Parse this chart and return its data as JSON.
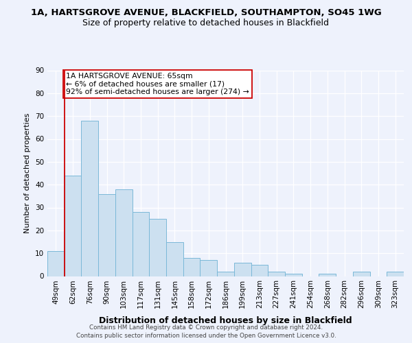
{
  "title": "1A, HARTSGROVE AVENUE, BLACKFIELD, SOUTHAMPTON, SO45 1WG",
  "subtitle": "Size of property relative to detached houses in Blackfield",
  "xlabel": "Distribution of detached houses by size in Blackfield",
  "ylabel": "Number of detached properties",
  "categories": [
    "49sqm",
    "62sqm",
    "76sqm",
    "90sqm",
    "103sqm",
    "117sqm",
    "131sqm",
    "145sqm",
    "158sqm",
    "172sqm",
    "186sqm",
    "199sqm",
    "213sqm",
    "227sqm",
    "241sqm",
    "254sqm",
    "268sqm",
    "282sqm",
    "296sqm",
    "309sqm",
    "323sqm"
  ],
  "values": [
    11,
    44,
    68,
    36,
    38,
    28,
    25,
    15,
    8,
    7,
    2,
    6,
    5,
    2,
    1,
    0,
    1,
    0,
    2,
    0,
    2
  ],
  "bar_color": "#cce0f0",
  "bar_edge_color": "#7ab8d8",
  "marker_line_color": "#cc0000",
  "annotation_line1": "1A HARTSGROVE AVENUE: 65sqm",
  "annotation_line2": "← 6% of detached houses are smaller (17)",
  "annotation_line3": "92% of semi-detached houses are larger (274) →",
  "annotation_box_color": "#ffffff",
  "annotation_box_edge": "#cc0000",
  "ylim": [
    0,
    90
  ],
  "yticks": [
    0,
    10,
    20,
    30,
    40,
    50,
    60,
    70,
    80,
    90
  ],
  "footer_line1": "Contains HM Land Registry data © Crown copyright and database right 2024.",
  "footer_line2": "Contains public sector information licensed under the Open Government Licence v3.0.",
  "bg_color": "#eef2fc",
  "grid_color": "#ffffff",
  "title_fontsize": 9.5,
  "subtitle_fontsize": 9,
  "ylabel_fontsize": 8,
  "xlabel_fontsize": 9,
  "tick_fontsize": 7.5,
  "annotation_fontsize": 7.8,
  "footer_fontsize": 6.3
}
